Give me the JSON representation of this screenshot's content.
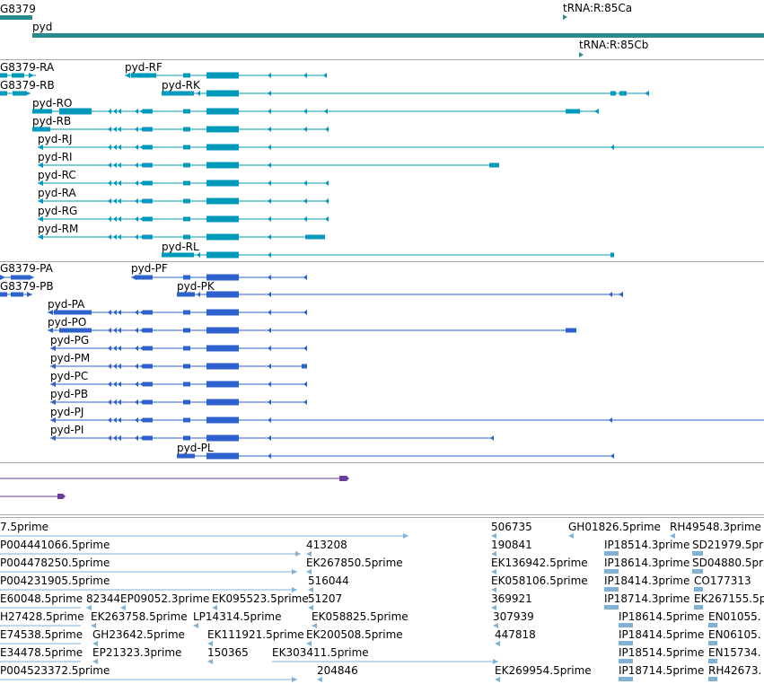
{
  "colors": {
    "gene": "#2a8a8e",
    "mrna": "#0099bb",
    "cds": "#2d62cc",
    "other": "#6a3d9a",
    "est": "#7fb2d6",
    "separator": "#a8a8a8"
  },
  "genes": [
    {
      "label": "G8379"
    },
    {
      "label": "pyd"
    },
    {
      "label": "tRNA:R:85Ca"
    },
    {
      "label": "tRNA:R:85Cb"
    }
  ],
  "transcripts": [
    {
      "label": "G8379-RA"
    },
    {
      "label": "pyd-RF"
    },
    {
      "label": "G8379-RB"
    },
    {
      "label": "pyd-RK"
    },
    {
      "label": "pyd-RO"
    },
    {
      "label": "pyd-RB"
    },
    {
      "label": "pyd-RJ"
    },
    {
      "label": "pyd-RI"
    },
    {
      "label": "pyd-RC"
    },
    {
      "label": "pyd-RA"
    },
    {
      "label": "pyd-RG"
    },
    {
      "label": "pyd-RM"
    },
    {
      "label": "pyd-RL"
    }
  ],
  "proteins": [
    {
      "label": "G8379-PA"
    },
    {
      "label": "pyd-PF"
    },
    {
      "label": "G8379-PB"
    },
    {
      "label": "pyd-PK"
    },
    {
      "label": "pyd-PA"
    },
    {
      "label": "pyd-PO"
    },
    {
      "label": "pyd-PG"
    },
    {
      "label": "pyd-PM"
    },
    {
      "label": "pyd-PC"
    },
    {
      "label": "pyd-PB"
    },
    {
      "label": "pyd-PJ"
    },
    {
      "label": "pyd-PI"
    },
    {
      "label": "pyd-PL"
    }
  ],
  "ests": [
    {
      "label": "7.5prime"
    },
    {
      "label": "506735"
    },
    {
      "label": "GH01826.5prime"
    },
    {
      "label": "RH49548.3prime"
    },
    {
      "label": "P004441066.5prime"
    },
    {
      "label": "413208"
    },
    {
      "label": "190841"
    },
    {
      "label": "IP18514.3prime"
    },
    {
      "label": "SD21979.5prime"
    },
    {
      "label": "P004478250.5prime"
    },
    {
      "label": "EK267850.5prime"
    },
    {
      "label": "EK136942.5prime"
    },
    {
      "label": "IP18614.3prime"
    },
    {
      "label": "SD04880.5prime"
    },
    {
      "label": "P004231905.5prime"
    },
    {
      "label": "516044"
    },
    {
      "label": "EK058106.5prime"
    },
    {
      "label": "IP18414.3prime"
    },
    {
      "label": "CO177313"
    },
    {
      "label": "E60048.5prime"
    },
    {
      "label": "82344"
    },
    {
      "label": "EP09052.3prime"
    },
    {
      "label": "EK095523.5prime"
    },
    {
      "label": "51207"
    },
    {
      "label": "369921"
    },
    {
      "label": "IP18714.3prime"
    },
    {
      "label": "EK267155.5p"
    },
    {
      "label": "H27428.5prime"
    },
    {
      "label": "EK263758.5prime"
    },
    {
      "label": "LP14314.5prime"
    },
    {
      "label": "EK058825.5prime"
    },
    {
      "label": "307939"
    },
    {
      "label": "IP18614.5prime"
    },
    {
      "label": "EN01055."
    },
    {
      "label": "E74538.5prime"
    },
    {
      "label": "GH23642.5prime"
    },
    {
      "label": "EK111921.5prime"
    },
    {
      "label": "EK200508.5prime"
    },
    {
      "label": "447818"
    },
    {
      "label": "IP18414.5prime"
    },
    {
      "label": "EN06105."
    },
    {
      "label": "E34478.5prime"
    },
    {
      "label": "EP21323.3prime"
    },
    {
      "label": "150365"
    },
    {
      "label": "EK303411.5prime"
    },
    {
      "label": "IP18514.5prime"
    },
    {
      "label": "EN15734."
    },
    {
      "label": "P004523372.5prime"
    },
    {
      "label": "204846"
    },
    {
      "label": "EK269954.5prime"
    },
    {
      "label": "IP18714.5prime"
    },
    {
      "label": "RH42673."
    }
  ]
}
